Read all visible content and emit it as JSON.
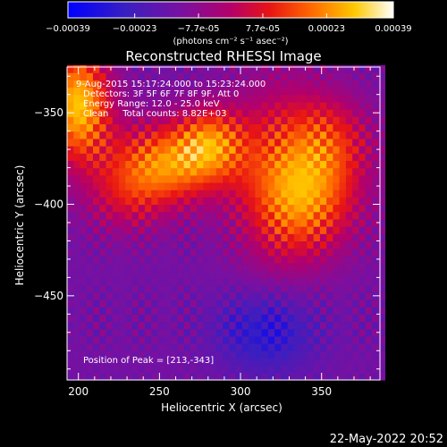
{
  "chart_data": {
    "type": "heatmap",
    "title": "Reconstructed RHESSI Image",
    "xlabel": "Heliocentric X (arcsec)",
    "ylabel": "Heliocentric Y (arcsec)",
    "xlim": [
      193,
      386
    ],
    "ylim": [
      -496,
      -325
    ],
    "x_ticks": [
      200,
      250,
      300,
      350
    ],
    "y_ticks": [
      -350,
      -400,
      -450
    ],
    "colorbar": {
      "range": [
        -0.00039,
        0.00039
      ],
      "tick_values": [
        -0.00039,
        -0.00023,
        -7.7e-05,
        7.7e-05,
        0.00023,
        0.00039
      ],
      "tick_labels": [
        "-0.00039",
        "-0.00023",
        "−7.7e-05",
        "7.7e-05",
        "0.00023",
        "0.00039"
      ],
      "unit_label": "(photons cm⁻² s⁻¹ asec⁻²)"
    },
    "annotations": [
      "9-Aug-2015 15:17:24.000 to 15:23:24.000",
      "Detectors: 3F 5F 6F 7F 8F 9F, Att 0",
      "Energy Range: 12.0 - 25.0 keV",
      "Clean     Total counts: 8.82E+03"
    ],
    "peak_label": "Position of Peak = [213,-343]",
    "peak": [
      213,
      -343
    ],
    "sources": [
      {
        "x": 200,
        "y": -345,
        "sx": 14,
        "sy": 22,
        "amp": 0.00042
      },
      {
        "x": 252,
        "y": -378,
        "sx": 24,
        "sy": 16,
        "amp": 0.00034
      },
      {
        "x": 282,
        "y": -366,
        "sx": 15,
        "sy": 14,
        "amp": 0.00026
      },
      {
        "x": 325,
        "y": -383,
        "sx": 22,
        "sy": 35,
        "amp": 0.00024
      },
      {
        "x": 345,
        "y": -398,
        "sx": 22,
        "sy": 20,
        "amp": 0.00021
      },
      {
        "x": 357,
        "y": -365,
        "sx": 18,
        "sy": 18,
        "amp": 0.00018
      },
      {
        "x": 228,
        "y": -398,
        "sx": 18,
        "sy": 14,
        "amp": 0.00012
      }
    ],
    "background": -0.00013,
    "minimum": {
      "x": 316,
      "y": -470,
      "sx": 22,
      "sy": 16,
      "amp": -0.00016
    }
  },
  "timestamp": "22-May-2022 20:52"
}
